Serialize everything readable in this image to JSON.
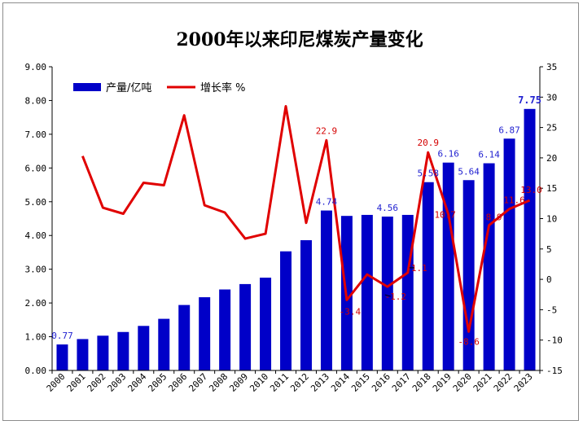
{
  "chart_data": {
    "type": "bar",
    "title": "2000年以来印尼煤炭产量变化",
    "categories": [
      "2000",
      "2001",
      "2002",
      "2003",
      "2004",
      "2005",
      "2006",
      "2007",
      "2008",
      "2009",
      "2010",
      "2011",
      "2012",
      "2013",
      "2014",
      "2015",
      "2016",
      "2017",
      "2018",
      "2019",
      "2020",
      "2021",
      "2022",
      "2023"
    ],
    "series": [
      {
        "name": "产量/亿吨",
        "type": "bar",
        "axis": "left",
        "color": "#0000c8",
        "values": [
          0.77,
          0.93,
          1.03,
          1.14,
          1.32,
          1.53,
          1.94,
          2.17,
          2.4,
          2.56,
          2.75,
          3.53,
          3.86,
          4.74,
          4.58,
          4.61,
          4.56,
          4.61,
          5.58,
          6.16,
          5.64,
          6.14,
          6.87,
          7.75
        ]
      },
      {
        "name": "增长率 %",
        "type": "line",
        "axis": "right",
        "color": "#e00000",
        "values": [
          null,
          20.3,
          11.8,
          10.8,
          15.9,
          15.5,
          27.0,
          12.2,
          11.0,
          6.7,
          7.5,
          28.5,
          9.3,
          22.9,
          -3.4,
          0.8,
          -1.2,
          1.1,
          20.9,
          10.7,
          -8.6,
          8.9,
          11.6,
          13.0
        ]
      }
    ],
    "left_axis": {
      "min": 0,
      "max": 9,
      "step": 1,
      "tick_labels": [
        "0.00",
        "1.00",
        "2.00",
        "3.00",
        "4.00",
        "5.00",
        "6.00",
        "7.00",
        "8.00",
        "9.00"
      ]
    },
    "right_axis": {
      "min": -15,
      "max": 35,
      "step": 5,
      "tick_labels": [
        "-15",
        "-10",
        "-5",
        "0",
        "5",
        "10",
        "15",
        "20",
        "25",
        "30",
        "35"
      ]
    },
    "bar_labels": [
      {
        "index": 0,
        "text": "0.77"
      },
      {
        "index": 13,
        "text": "4.74"
      },
      {
        "index": 16,
        "text": "4.56"
      },
      {
        "index": 18,
        "text": "5.58"
      },
      {
        "index": 19,
        "text": "6.16"
      },
      {
        "index": 20,
        "text": "5.64"
      },
      {
        "index": 21,
        "text": "6.14"
      },
      {
        "index": 22,
        "text": "6.87"
      },
      {
        "index": 23,
        "text": "7.75",
        "bold": true
      }
    ],
    "line_labels": [
      {
        "index": 13,
        "text": "22.9"
      },
      {
        "index": 14,
        "text": "-3.4"
      },
      {
        "index": 16,
        "text": "-1.2"
      },
      {
        "index": 17,
        "text": "1.1"
      },
      {
        "index": 18,
        "text": "20.9"
      },
      {
        "index": 19,
        "text": "10.7"
      },
      {
        "index": 20,
        "text": "-8.6"
      },
      {
        "index": 21,
        "text": "8.9"
      },
      {
        "index": 22,
        "text": "11.6"
      },
      {
        "index": 23,
        "text": "13.0"
      }
    ],
    "grid": false,
    "legend_position": "top-left"
  }
}
